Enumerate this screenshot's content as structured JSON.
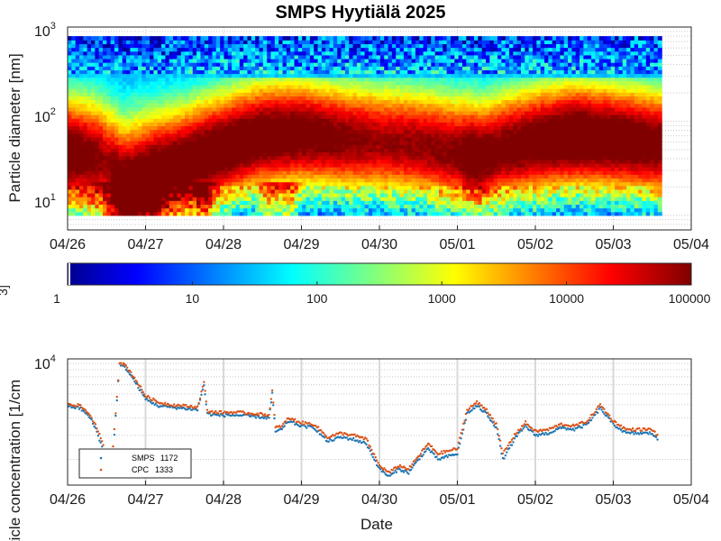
{
  "chart_data": [
    {
      "type": "heatmap",
      "title": "SMPS Hyytiälä 2025",
      "ylabel": "Particle diameter [nm]",
      "yscale": "log",
      "ylim": [
        7,
        1000
      ],
      "ytick_labels": [
        {
          "base": "10",
          "exp": "1"
        },
        {
          "base": "10",
          "exp": "2"
        },
        {
          "base": "10",
          "exp": "3"
        }
      ],
      "x_tick_labels": [
        "04/26",
        "04/27",
        "04/28",
        "04/29",
        "04/30",
        "05/01",
        "05/02",
        "05/03",
        "05/04"
      ],
      "grid": true,
      "colorbar": {
        "label": "3]",
        "scale": "log",
        "colormap": "jet",
        "tick_labels": [
          "1",
          "10",
          "100",
          "1000",
          "10000",
          "100000"
        ],
        "range": [
          1,
          100000
        ]
      },
      "colors": {
        "colormap_stops": [
          "#00008f",
          "#0000ff",
          "#00ffff",
          "#ffff00",
          "#ff0000",
          "#800000"
        ]
      }
    },
    {
      "type": "line",
      "ylabel": "article concentration [1/cm",
      "xlabel": "Date",
      "yscale": "log",
      "ytick_labels": [
        {
          "base": "10",
          "exp": "4"
        }
      ],
      "x_tick_labels": [
        "04/26",
        "04/27",
        "04/28",
        "04/29",
        "04/30",
        "05/01",
        "05/02",
        "05/03",
        "05/04"
      ],
      "grid": true,
      "legend_placement": "bottom-left",
      "series": [
        {
          "name": "SMPS",
          "legend_value": "1172",
          "color": "#1f77b4",
          "values": [
            [
              "04/26 00:00",
              4900
            ],
            [
              "04/26 04:00",
              4700
            ],
            [
              "04/26 07:00",
              4000
            ],
            [
              "04/26 09:00",
              3200
            ],
            [
              "04/26 11:00",
              2300
            ],
            [
              "04/26 12:30",
              2000
            ],
            [
              "04/26 14:00",
              2300
            ],
            [
              "04/26 16:00",
              9800
            ],
            [
              "04/26 18:00",
              9200
            ],
            [
              "04/26 21:00",
              7200
            ],
            [
              "04/27 00:00",
              5500
            ],
            [
              "04/27 04:00",
              4900
            ],
            [
              "04/27 08:00",
              4800
            ],
            [
              "04/27 12:00",
              4700
            ],
            [
              "04/27 16:00",
              4600
            ],
            [
              "04/27 18:00",
              7000
            ],
            [
              "04/27 19:00",
              4300
            ],
            [
              "04/27 22:00",
              4200
            ],
            [
              "04/28 04:00",
              4200
            ],
            [
              "04/28 10:00",
              4100
            ],
            [
              "04/28 14:00",
              4000
            ],
            [
              "04/28 15:00",
              6000
            ],
            [
              "04/28 16:00",
              3200
            ],
            [
              "04/28 18:00",
              3300
            ],
            [
              "04/28 20:00",
              3800
            ],
            [
              "04/29 00:00",
              3500
            ],
            [
              "04/29 04:00",
              3400
            ],
            [
              "04/29 08:00",
              2700
            ],
            [
              "04/29 12:00",
              2900
            ],
            [
              "04/29 16:00",
              2800
            ],
            [
              "04/29 20:00",
              2600
            ],
            [
              "04/30 00:00",
              1700
            ],
            [
              "04/30 03:00",
              1500
            ],
            [
              "04/30 06:00",
              1700
            ],
            [
              "04/30 09:00",
              1600
            ],
            [
              "04/30 12:00",
              2000
            ],
            [
              "04/30 15:00",
              2400
            ],
            [
              "04/30 18:00",
              2000
            ],
            [
              "04/30 21:00",
              2100
            ],
            [
              "05/01 00:00",
              2200
            ],
            [
              "05/01 03:00",
              4300
            ],
            [
              "05/01 06:00",
              4900
            ],
            [
              "05/01 09:00",
              4300
            ],
            [
              "05/01 12:00",
              3400
            ],
            [
              "05/01 14:00",
              2000
            ],
            [
              "05/01 18:00",
              2900
            ],
            [
              "05/01 21:00",
              3500
            ],
            [
              "05/02 00:00",
              3000
            ],
            [
              "05/02 04:00",
              3100
            ],
            [
              "05/02 08:00",
              3400
            ],
            [
              "05/02 12:00",
              3300
            ],
            [
              "05/02 16:00",
              3600
            ],
            [
              "05/02 20:00",
              4700
            ],
            [
              "05/03 00:00",
              3600
            ],
            [
              "05/03 04:00",
              3100
            ],
            [
              "05/03 08:00",
              3100
            ],
            [
              "05/03 12:00",
              3100
            ],
            [
              "05/03 14:00",
              2700
            ]
          ]
        },
        {
          "name": "CPC",
          "legend_value": "1333",
          "color": "#d95319",
          "values": [
            [
              "04/26 00:00",
              5100
            ],
            [
              "04/26 04:00",
              4900
            ],
            [
              "04/26 07:00",
              4200
            ],
            [
              "04/26 09:00",
              3400
            ],
            [
              "04/26 11:00",
              2500
            ],
            [
              "04/26 12:30",
              2100
            ],
            [
              "04/26 14:00",
              2500
            ],
            [
              "04/26 16:00",
              10200
            ],
            [
              "04/26 18:00",
              9600
            ],
            [
              "04/26 21:00",
              7600
            ],
            [
              "04/27 00:00",
              5800
            ],
            [
              "04/27 04:00",
              5200
            ],
            [
              "04/27 08:00",
              5000
            ],
            [
              "04/27 12:00",
              4900
            ],
            [
              "04/27 16:00",
              4800
            ],
            [
              "04/27 18:00",
              7300
            ],
            [
              "04/27 19:00",
              4500
            ],
            [
              "04/27 22:00",
              4400
            ],
            [
              "04/28 04:00",
              4400
            ],
            [
              "04/28 10:00",
              4300
            ],
            [
              "04/28 14:00",
              4200
            ],
            [
              "04/28 15:00",
              6300
            ],
            [
              "04/28 16:00",
              3400
            ],
            [
              "04/28 18:00",
              3500
            ],
            [
              "04/28 20:00",
              4000
            ],
            [
              "04/29 00:00",
              3700
            ],
            [
              "04/29 04:00",
              3600
            ],
            [
              "04/29 08:00",
              2900
            ],
            [
              "04/29 12:00",
              3100
            ],
            [
              "04/29 16:00",
              3000
            ],
            [
              "04/29 20:00",
              2800
            ],
            [
              "04/30 00:00",
              1800
            ],
            [
              "04/30 03:00",
              1600
            ],
            [
              "04/30 06:00",
              1800
            ],
            [
              "04/30 09:00",
              1700
            ],
            [
              "04/30 12:00",
              2100
            ],
            [
              "04/30 15:00",
              2600
            ],
            [
              "04/30 18:00",
              2200
            ],
            [
              "04/30 21:00",
              2300
            ],
            [
              "05/01 00:00",
              2400
            ],
            [
              "05/01 03:00",
              4600
            ],
            [
              "05/01 06:00",
              5200
            ],
            [
              "05/01 09:00",
              4600
            ],
            [
              "05/01 12:00",
              3600
            ],
            [
              "05/01 14:00",
              2200
            ],
            [
              "05/01 18:00",
              3100
            ],
            [
              "05/01 21:00",
              3700
            ],
            [
              "05/02 00:00",
              3200
            ],
            [
              "05/02 04:00",
              3300
            ],
            [
              "05/02 08:00",
              3600
            ],
            [
              "05/02 12:00",
              3500
            ],
            [
              "05/02 16:00",
              3800
            ],
            [
              "05/02 20:00",
              5000
            ],
            [
              "05/03 00:00",
              3800
            ],
            [
              "05/03 04:00",
              3300
            ],
            [
              "05/03 08:00",
              3300
            ],
            [
              "05/03 12:00",
              3300
            ],
            [
              "05/03 14:00",
              2900
            ]
          ]
        }
      ]
    }
  ]
}
